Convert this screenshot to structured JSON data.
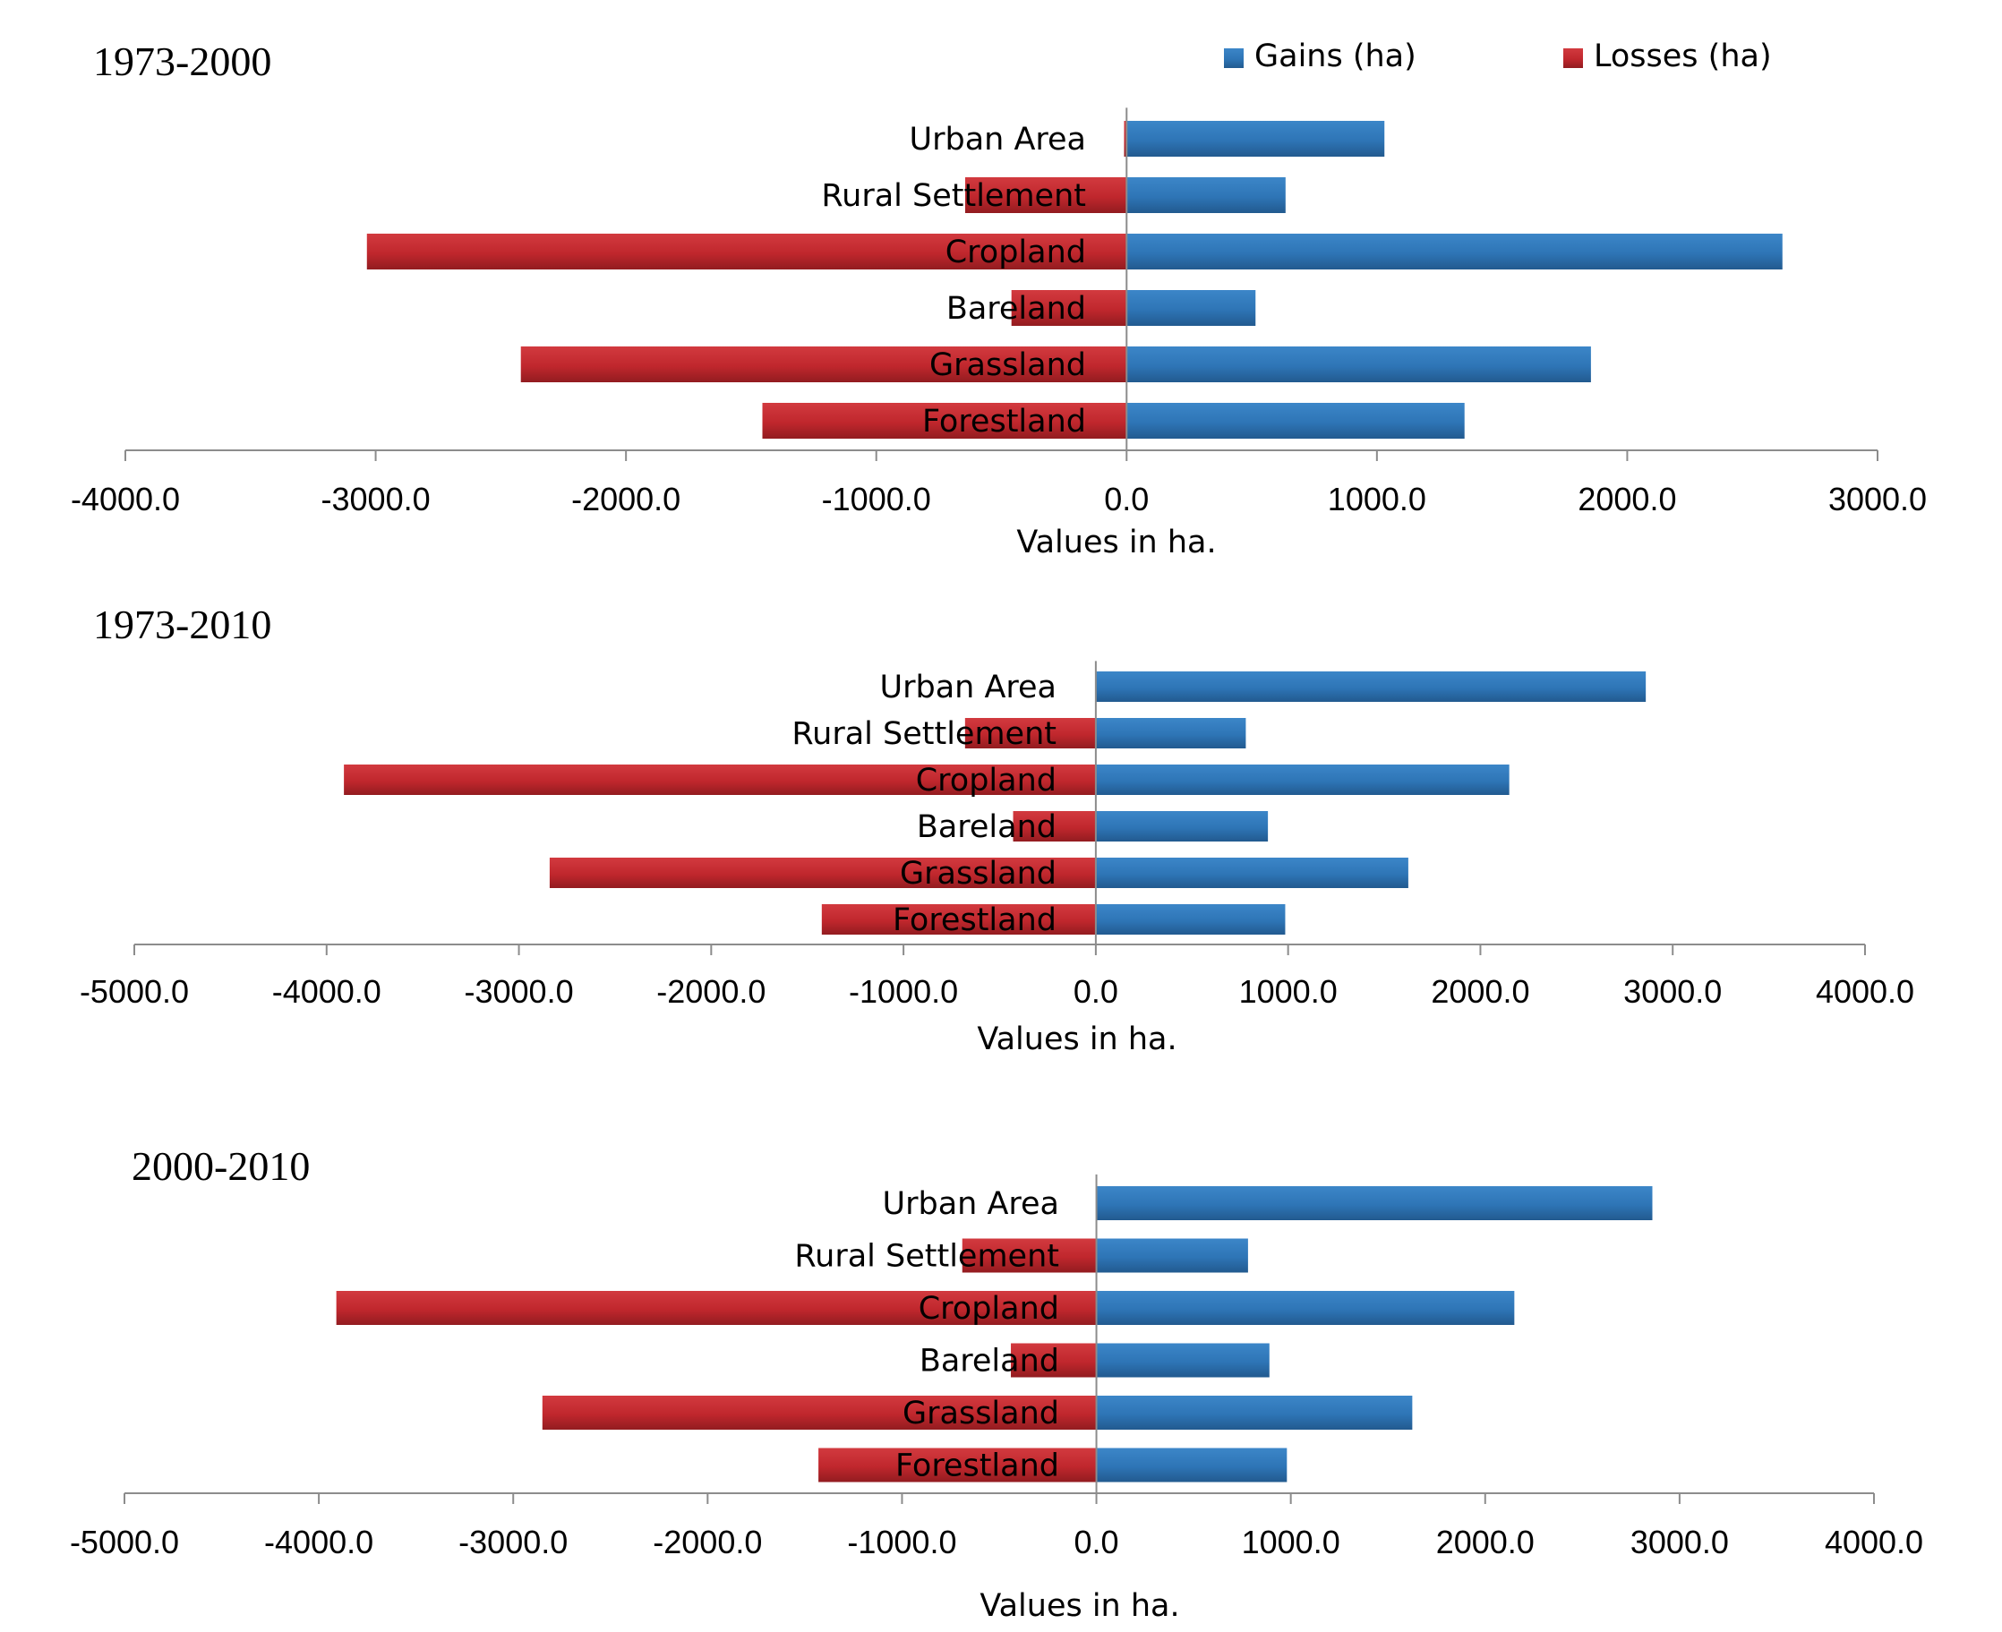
{
  "legend": [
    {
      "label": "Gains (ha)",
      "color": "#2e75b6"
    },
    {
      "label": "Losses (ha)",
      "color": "#c0272d"
    }
  ],
  "chart_data": [
    {
      "type": "bar",
      "orientation": "horizontal",
      "title": "1973-2000",
      "xlabel": "Values in ha.",
      "xlim": [
        -4000,
        3000
      ],
      "xticks": [
        -4000,
        -3000,
        -2000,
        -1000,
        0,
        1000,
        2000,
        3000
      ],
      "tick_labels": [
        "-4000.0",
        "-3000.0",
        "-2000.0",
        "-1000.0",
        "0.0",
        "1000.0",
        "2000.0",
        "3000.0"
      ],
      "categories": [
        "Urban Area",
        "Rural Settlement",
        "Cropland",
        "Bareland",
        "Grassland",
        "Forestland"
      ],
      "series": [
        {
          "name": "Gains (ha)",
          "values": [
            1030,
            635,
            2620,
            515,
            1855,
            1350
          ]
        },
        {
          "name": "Losses (ha)",
          "values": [
            -10,
            -645,
            -3035,
            -460,
            -2420,
            -1455
          ]
        }
      ]
    },
    {
      "type": "bar",
      "orientation": "horizontal",
      "title": "1973-2010",
      "xlabel": "Values in ha.",
      "xlim": [
        -5000,
        4000
      ],
      "xticks": [
        -5000,
        -4000,
        -3000,
        -2000,
        -1000,
        0,
        1000,
        2000,
        3000,
        4000
      ],
      "tick_labels": [
        "-5000.0",
        "-4000.0",
        "-3000.0",
        "-2000.0",
        "-1000.0",
        "0.0",
        "1000.0",
        "2000.0",
        "3000.0",
        "4000.0"
      ],
      "categories": [
        "Urban Area",
        "Rural Settlement",
        "Cropland",
        "Bareland",
        "Grassland",
        "Forestland"
      ],
      "series": [
        {
          "name": "Gains (ha)",
          "values": [
            2860,
            780,
            2150,
            895,
            1625,
            985
          ]
        },
        {
          "name": "Losses (ha)",
          "values": [
            0,
            -680,
            -3910,
            -430,
            -2840,
            -1425
          ]
        }
      ]
    },
    {
      "type": "bar",
      "orientation": "horizontal",
      "title": "2000-2010",
      "xlabel": "Values in ha.",
      "xlim": [
        -5000,
        4000
      ],
      "xticks": [
        -5000,
        -4000,
        -3000,
        -2000,
        -1000,
        0,
        1000,
        2000,
        3000,
        4000
      ],
      "tick_labels": [
        "-5000.0",
        "-4000.0",
        "-3000.0",
        "-2000.0",
        "-1000.0",
        "0.0",
        "1000.0",
        "2000.0",
        "3000.0",
        "4000.0"
      ],
      "categories": [
        "Urban Area",
        "Rural Settlement",
        "Cropland",
        "Bareland",
        "Grassland",
        "Forestland"
      ],
      "series": [
        {
          "name": "Gains (ha)",
          "values": [
            2860,
            780,
            2150,
            890,
            1625,
            980
          ]
        },
        {
          "name": "Losses (ha)",
          "values": [
            0,
            -690,
            -3910,
            -440,
            -2850,
            -1430
          ]
        }
      ]
    }
  ]
}
